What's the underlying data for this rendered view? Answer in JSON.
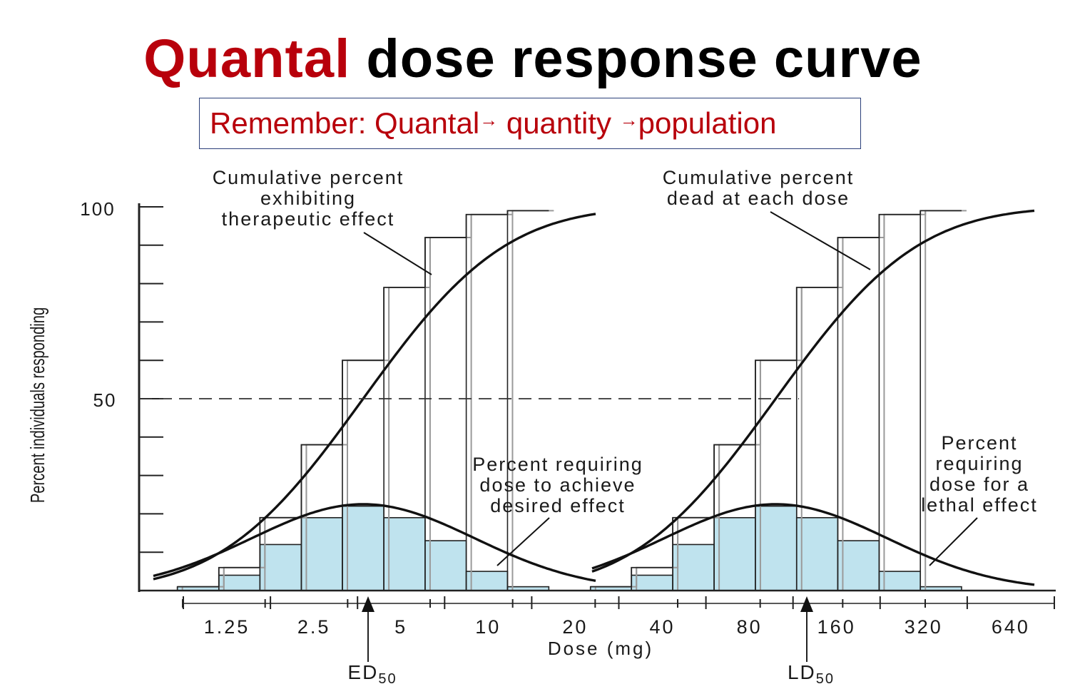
{
  "slide": {
    "title_accent": "Quantal",
    "title_rest": "dose response curve",
    "remember_prefix": "Remember: Quantal",
    "remember_arrow": "→",
    "remember_middle": " quantity ",
    "remember_end": "population",
    "accent_color": "#b8000b",
    "box_border_color": "#2b3f7a"
  },
  "chart_data": {
    "type": "bar",
    "xlabel": "Dose (mg)",
    "ylabel": "Percent individuals responding",
    "ylim": [
      0,
      100
    ],
    "y_ticks": [
      "100",
      "50"
    ],
    "x_ticks": [
      "1.25",
      "2.5",
      "5",
      "10",
      "20",
      "40",
      "80",
      "160",
      "320",
      "640"
    ],
    "x_scale": "log2",
    "grid": false,
    "bar_color": "#bfe3ee",
    "reference_line": {
      "y": 50,
      "style": "dashed"
    },
    "ed50_label": "ED",
    "ld50_label": "LD",
    "sub_label": "50",
    "ed50": 4,
    "ld50": 128,
    "series": [
      {
        "group": "therapeutic",
        "bin_edges": [
          0.84,
          1.19,
          1.68,
          2.38,
          3.36,
          4.76,
          6.73,
          9.51,
          13.45,
          19.03
        ],
        "percent_requiring": [
          1,
          4,
          12,
          19,
          22,
          19,
          13,
          5,
          1
        ],
        "cumulative_percent": [
          1,
          6,
          19,
          38,
          60,
          79,
          92,
          98,
          99
        ]
      },
      {
        "group": "lethal",
        "bin_edges": [
          27.0,
          38.1,
          53.9,
          76.3,
          107.9,
          152.6,
          215.6,
          305.2,
          431.5,
          609.9
        ],
        "percent_requiring": [
          1,
          4,
          12,
          19,
          22,
          19,
          13,
          5,
          1
        ],
        "cumulative_percent": [
          1,
          6,
          19,
          38,
          60,
          79,
          92,
          98,
          99
        ]
      }
    ],
    "annotations": {
      "cum_therapeutic": [
        "Cumulative percent",
        "exhibiting",
        "therapeutic effect"
      ],
      "cum_lethal": [
        "Cumulative percent",
        "dead at each dose"
      ],
      "pct_therapeutic": [
        "Percent requiring",
        "dose to achieve",
        "desired effect"
      ],
      "pct_lethal": [
        "Percent",
        "requiring",
        "dose for a",
        "lethal effect"
      ]
    }
  }
}
